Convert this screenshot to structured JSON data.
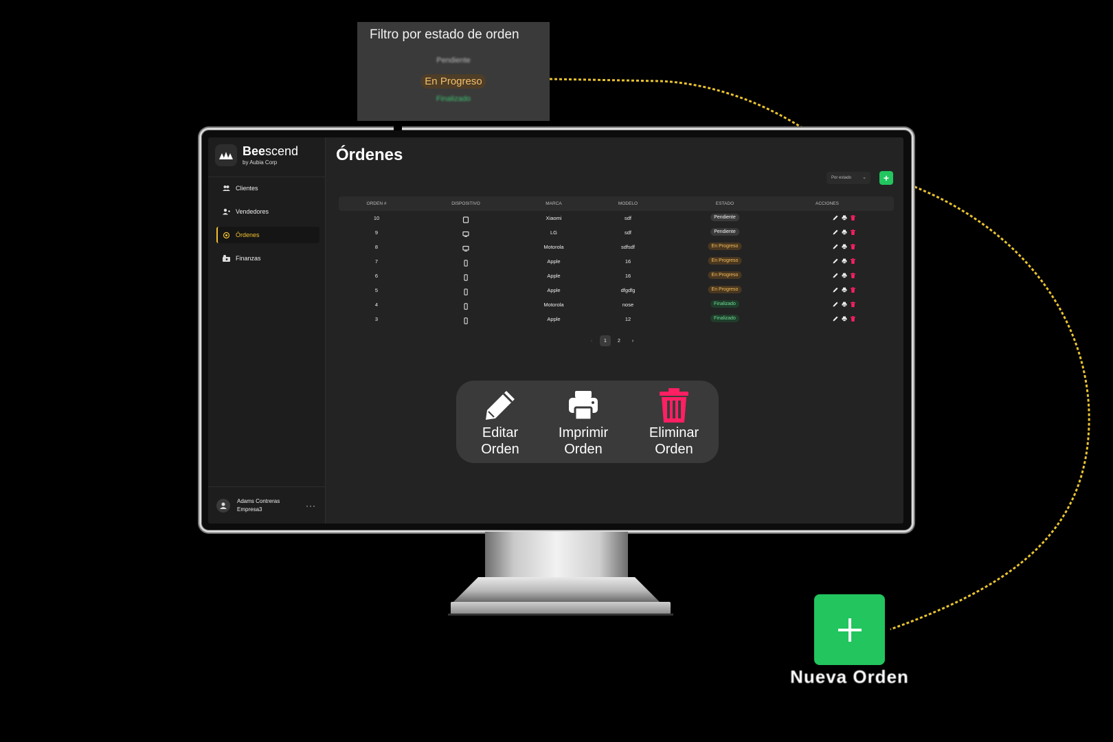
{
  "brand": {
    "name_bold": "Bee",
    "name_light": "scend",
    "subtitle": "by Aubia Corp"
  },
  "sidebar": {
    "items": [
      {
        "label": "Clientes",
        "icon": "users-icon",
        "active": false
      },
      {
        "label": "Vendedores",
        "icon": "user-plus-icon",
        "active": false
      },
      {
        "label": "Órdenes",
        "icon": "orders-icon",
        "active": true
      },
      {
        "label": "Finanzas",
        "icon": "finance-icon",
        "active": false
      }
    ],
    "user": {
      "name": "Adams Contreras",
      "company": "Empresa3",
      "more": "···"
    }
  },
  "main": {
    "title": "Órdenes",
    "filter_placeholder": "Por estado",
    "add_label": "+",
    "table": {
      "headers": [
        "ORDEN #",
        "DISPOSITIVO",
        "MARCA",
        "MODELO",
        "ESTADO",
        "ACCIONES"
      ],
      "rows": [
        {
          "orden": "10",
          "dispositivo": "tablet-icon",
          "marca": "Xiaomi",
          "modelo": "sdf",
          "estado": "Pendiente"
        },
        {
          "orden": "9",
          "dispositivo": "desktop-icon",
          "marca": "LG",
          "modelo": "sdf",
          "estado": "Pendiente"
        },
        {
          "orden": "8",
          "dispositivo": "desktop-icon",
          "marca": "Motorola",
          "modelo": "sdfsdf",
          "estado": "En Progreso"
        },
        {
          "orden": "7",
          "dispositivo": "phone-icon",
          "marca": "Apple",
          "modelo": "16",
          "estado": "En Progreso"
        },
        {
          "orden": "6",
          "dispositivo": "phone-icon",
          "marca": "Apple",
          "modelo": "16",
          "estado": "En Progreso"
        },
        {
          "orden": "5",
          "dispositivo": "phone-icon",
          "marca": "Apple",
          "modelo": "dfgdfg",
          "estado": "En Progreso"
        },
        {
          "orden": "4",
          "dispositivo": "phone-icon",
          "marca": "Motorola",
          "modelo": "nose",
          "estado": "Finalizado"
        },
        {
          "orden": "3",
          "dispositivo": "phone-icon",
          "marca": "Apple",
          "modelo": "12",
          "estado": "Finalizado"
        }
      ]
    },
    "pagination": {
      "prev": "‹",
      "pages": [
        "1",
        "2"
      ],
      "current": "1",
      "next": "›"
    }
  },
  "callouts": {
    "filter": {
      "title": "Filtro por estado de orden",
      "options": [
        "Pendiente",
        "En Progreso",
        "Finalizado"
      ]
    },
    "actions": {
      "edit": "Editar Orden",
      "print": "Imprimir Orden",
      "delete": "Eliminar Orden"
    },
    "new_order": {
      "label": "Nueva Orden"
    }
  },
  "colors": {
    "accent": "#f2c230",
    "green": "#22c55e",
    "danger": "#ff1f63",
    "pending_bg": "#3a3a3a",
    "progress_bg": "#4a3720",
    "progress_text": "#f4bf5b",
    "done_bg": "#1f3d2a",
    "done_text": "#6fdb94"
  }
}
